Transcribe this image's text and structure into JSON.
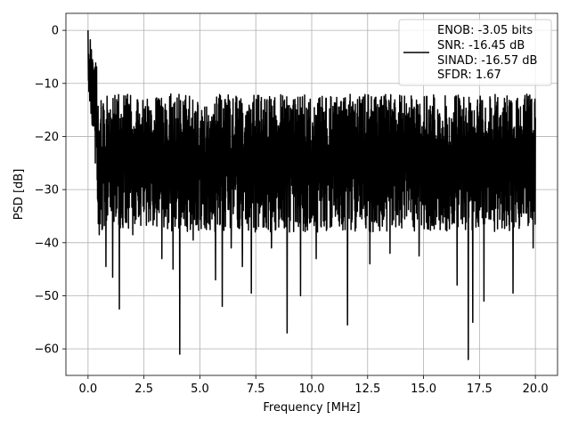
{
  "chart_data": {
    "type": "line",
    "xlabel": "Frequency [MHz]",
    "ylabel": "PSD [dB]",
    "xlim": [
      -0.99,
      20.99
    ],
    "ylim": [
      -65,
      3.2
    ],
    "xticks": [
      0.0,
      2.5,
      5.0,
      7.5,
      10.0,
      12.5,
      15.0,
      17.5,
      20.0
    ],
    "xtick_labels": [
      "0.0",
      "2.5",
      "5.0",
      "7.5",
      "10.0",
      "12.5",
      "15.0",
      "17.5",
      "20.0"
    ],
    "yticks": [
      0,
      -10,
      -20,
      -30,
      -40,
      -50,
      -60
    ],
    "ytick_labels": [
      "0",
      "−10",
      "−20",
      "−30",
      "−40",
      "−50",
      "−60"
    ],
    "grid": true,
    "legend_position": "upper-right",
    "series": [
      {
        "color": "#000000",
        "legend_lines": [
          "ENOB: -3.05 bits",
          "SNR: -16.45 dB",
          "SINAD: -16.57 dB",
          "SFDR: 1.67"
        ],
        "x_range": [
          0.0,
          20.0
        ],
        "peak": {
          "x": 0.0,
          "y": 0.0
        },
        "noise_floor_band": [
          -38,
          -12
        ],
        "deep_nulls": [
          {
            "x": 0.5,
            "y": -38.5
          },
          {
            "x": 0.8,
            "y": -44.5
          },
          {
            "x": 1.1,
            "y": -40.5
          },
          {
            "x": 1.1,
            "y": -46.5
          },
          {
            "x": 1.4,
            "y": -52.5
          },
          {
            "x": 2.0,
            "y": -38.5
          },
          {
            "x": 3.3,
            "y": -43.0
          },
          {
            "x": 3.8,
            "y": -45.0
          },
          {
            "x": 4.1,
            "y": -61.0
          },
          {
            "x": 4.7,
            "y": -39.5
          },
          {
            "x": 5.7,
            "y": -47.0
          },
          {
            "x": 6.0,
            "y": -52.0
          },
          {
            "x": 6.4,
            "y": -41.0
          },
          {
            "x": 6.9,
            "y": -44.5
          },
          {
            "x": 7.3,
            "y": -49.5
          },
          {
            "x": 8.2,
            "y": -41.0
          },
          {
            "x": 8.9,
            "y": -57.0
          },
          {
            "x": 9.5,
            "y": -50.0
          },
          {
            "x": 10.2,
            "y": -43.0
          },
          {
            "x": 11.6,
            "y": -55.5
          },
          {
            "x": 12.6,
            "y": -44.0
          },
          {
            "x": 13.5,
            "y": -42.0
          },
          {
            "x": 14.8,
            "y": -42.5
          },
          {
            "x": 16.5,
            "y": -48.0
          },
          {
            "x": 17.0,
            "y": -62.0
          },
          {
            "x": 17.2,
            "y": -55.0
          },
          {
            "x": 17.7,
            "y": -51.0
          },
          {
            "x": 19.0,
            "y": -49.5
          },
          {
            "x": 19.9,
            "y": -41.0
          }
        ]
      }
    ]
  }
}
